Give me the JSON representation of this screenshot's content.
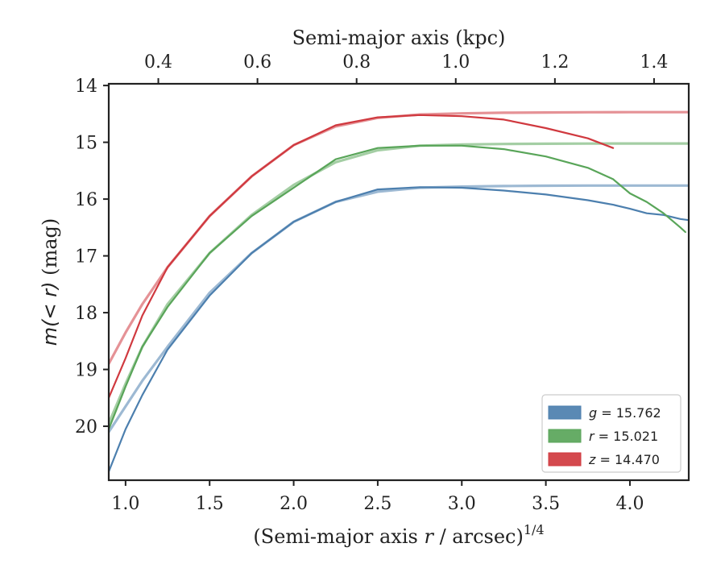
{
  "chart_data": {
    "type": "line",
    "xlabel": "(Semi-major axis r / arcsec)^1/4",
    "ylabel": "m(< r) (mag)",
    "top_xlabel": "Semi-major axis (kpc)",
    "xlim": [
      0.9,
      4.35
    ],
    "ylim": [
      20.95,
      13.97
    ],
    "y_inverted": true,
    "xticks": [
      1.0,
      1.5,
      2.0,
      2.5,
      3.0,
      3.5,
      4.0
    ],
    "xtick_labels": [
      "1.0",
      "1.5",
      "2.0",
      "2.5",
      "3.0",
      "3.5",
      "4.0"
    ],
    "yticks": [
      14,
      15,
      16,
      17,
      18,
      19,
      20
    ],
    "ytick_labels": [
      "14",
      "15",
      "16",
      "17",
      "18",
      "19",
      "20"
    ],
    "top_xticks": [
      0.4,
      0.6,
      0.8,
      1.0,
      1.2,
      1.4
    ],
    "top_xtick_labels": [
      "0.4",
      "0.6",
      "0.8",
      "1.0",
      "1.2",
      "1.4"
    ],
    "top_xlim": [
      0.3,
      1.47
    ],
    "grid": false,
    "legend_position": "bottom-right",
    "legend": [
      {
        "label": "g = 15.762",
        "color": "#4c7fae"
      },
      {
        "label": "r = 15.021",
        "color": "#59a559"
      },
      {
        "label": "z = 14.470",
        "color": "#d0393f"
      }
    ],
    "series": [
      {
        "name": "g (data)",
        "color": "#4c7fae",
        "style": "data",
        "x": [
          0.9,
          1.0,
          1.1,
          1.25,
          1.5,
          1.75,
          2.0,
          2.25,
          2.5,
          2.75,
          3.0,
          3.25,
          3.5,
          3.75,
          3.9,
          4.0,
          4.1,
          4.2,
          4.3,
          4.35
        ],
        "y": [
          20.8,
          20.05,
          19.45,
          18.65,
          17.7,
          16.95,
          16.4,
          16.05,
          15.83,
          15.79,
          15.8,
          15.85,
          15.92,
          16.02,
          16.1,
          16.17,
          16.25,
          16.28,
          16.35,
          16.37
        ]
      },
      {
        "name": "g (model)",
        "color": "#4c7fae",
        "style": "model",
        "x": [
          0.9,
          1.0,
          1.1,
          1.25,
          1.5,
          1.75,
          2.0,
          2.25,
          2.5,
          2.75,
          3.0,
          3.25,
          3.5,
          3.75,
          4.0,
          4.35
        ],
        "y": [
          20.1,
          19.65,
          19.2,
          18.6,
          17.65,
          16.95,
          16.4,
          16.05,
          15.87,
          15.8,
          15.78,
          15.77,
          15.765,
          15.762,
          15.762,
          15.762
        ]
      },
      {
        "name": "r (data)",
        "color": "#59a559",
        "style": "data",
        "x": [
          0.9,
          1.0,
          1.1,
          1.25,
          1.5,
          1.75,
          2.0,
          2.25,
          2.5,
          2.75,
          3.0,
          3.25,
          3.5,
          3.75,
          3.9,
          4.0,
          4.1,
          4.2,
          4.3,
          4.33
        ],
        "y": [
          20.05,
          19.3,
          18.6,
          17.9,
          16.95,
          16.3,
          15.8,
          15.3,
          15.1,
          15.06,
          15.06,
          15.12,
          15.25,
          15.45,
          15.65,
          15.9,
          16.05,
          16.25,
          16.5,
          16.58
        ]
      },
      {
        "name": "r (model)",
        "color": "#59a559",
        "style": "model",
        "x": [
          0.9,
          1.0,
          1.1,
          1.25,
          1.5,
          1.75,
          2.0,
          2.25,
          2.5,
          2.75,
          3.0,
          3.25,
          3.5,
          3.75,
          4.0,
          4.35
        ],
        "y": [
          19.95,
          19.25,
          18.6,
          17.85,
          16.95,
          16.28,
          15.75,
          15.35,
          15.14,
          15.06,
          15.04,
          15.03,
          15.025,
          15.022,
          15.021,
          15.021
        ]
      },
      {
        "name": "z (data)",
        "color": "#d0393f",
        "style": "data",
        "x": [
          0.9,
          1.0,
          1.1,
          1.25,
          1.5,
          1.75,
          2.0,
          2.25,
          2.5,
          2.75,
          3.0,
          3.25,
          3.5,
          3.75,
          3.9
        ],
        "y": [
          19.5,
          18.8,
          18.05,
          17.2,
          16.3,
          15.6,
          15.05,
          14.7,
          14.56,
          14.52,
          14.54,
          14.6,
          14.75,
          14.93,
          15.1
        ]
      },
      {
        "name": "z (model)",
        "color": "#d0393f",
        "style": "model",
        "x": [
          0.9,
          1.0,
          1.1,
          1.25,
          1.5,
          1.75,
          2.0,
          2.25,
          2.5,
          2.75,
          3.0,
          3.25,
          3.5,
          3.75,
          4.0,
          4.35
        ],
        "y": [
          18.9,
          18.35,
          17.85,
          17.2,
          16.3,
          15.6,
          15.05,
          14.72,
          14.57,
          14.51,
          14.49,
          14.48,
          14.475,
          14.471,
          14.47,
          14.47
        ]
      }
    ]
  }
}
